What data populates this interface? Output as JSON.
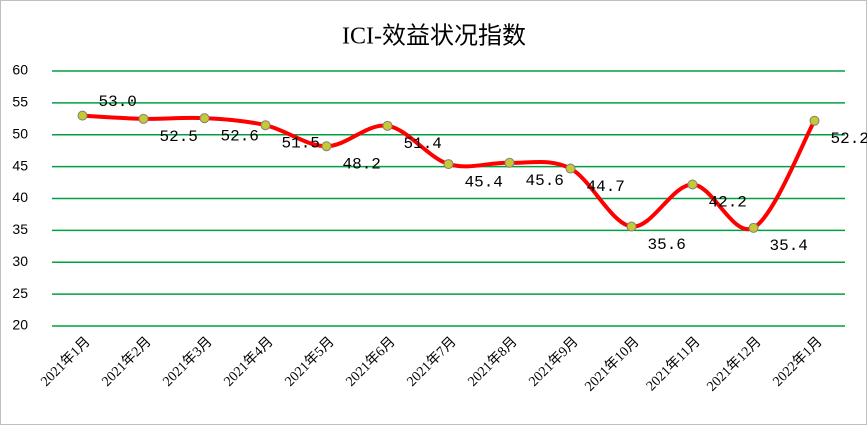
{
  "chart_data": {
    "type": "line",
    "title": "ICI-效益状况指数",
    "categories": [
      "2021年1月",
      "2021年2月",
      "2021年3月",
      "2021年4月",
      "2021年5月",
      "2021年6月",
      "2021年7月",
      "2021年8月",
      "2021年9月",
      "2021年10月",
      "2021年11月",
      "2021年12月",
      "2022年1月"
    ],
    "values": [
      53.0,
      52.5,
      52.6,
      51.5,
      48.2,
      51.4,
      45.4,
      45.6,
      44.7,
      35.6,
      42.2,
      35.4,
      52.2
    ],
    "value_labels": [
      "53.0",
      "52.5",
      "52.6",
      "51.5",
      "48.2",
      "51.4",
      "45.4",
      "45.6",
      "44.7",
      "35.6",
      "42.2",
      "35.4",
      "52.2"
    ],
    "color": "#ff0000",
    "marker_color": "#c8c832",
    "ylim": [
      20,
      60
    ],
    "yticks": [
      20,
      25,
      30,
      35,
      40,
      45,
      50,
      55,
      60
    ],
    "grid": true,
    "grid_color": "#00a040"
  }
}
